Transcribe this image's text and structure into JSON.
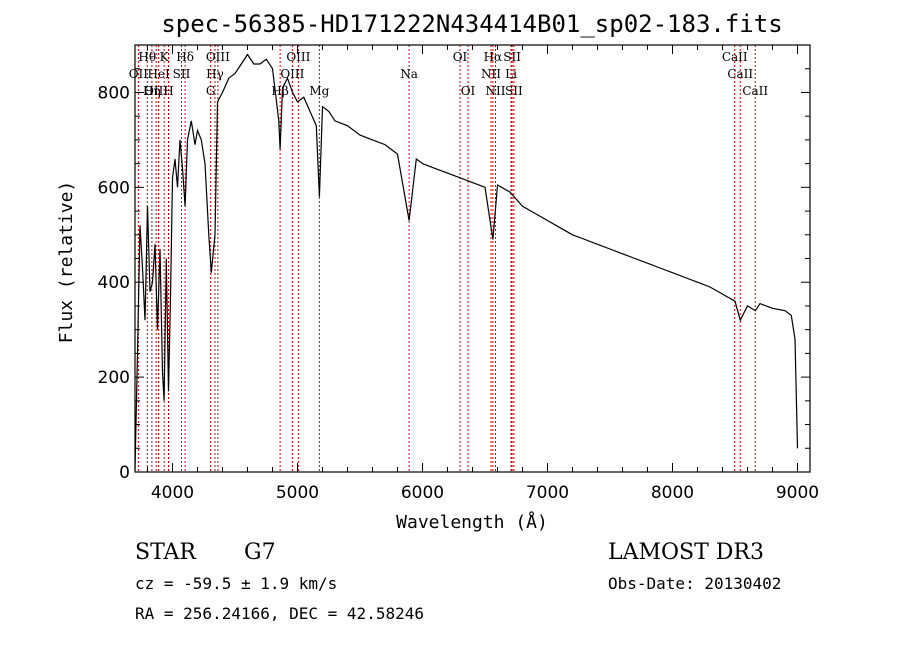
{
  "chart_data": {
    "type": "line",
    "title": "spec-56385-HD171222N434414B01_sp02-183.fits",
    "xlabel": "Wavelength (Å)",
    "ylabel": "Flux (relative)",
    "xlim": [
      3700,
      9100
    ],
    "ylim": [
      0,
      900
    ],
    "xticks": [
      4000,
      5000,
      6000,
      7000,
      8000,
      9000
    ],
    "yticks": [
      0,
      200,
      400,
      600,
      800
    ],
    "grid": false,
    "series": [
      {
        "x": [
          3700,
          3720,
          3740,
          3760,
          3780,
          3800,
          3820,
          3840,
          3860,
          3880,
          3900,
          3920,
          3933,
          3950,
          3968,
          3985,
          4000,
          4020,
          4040,
          4060,
          4080,
          4101,
          4120,
          4150,
          4180,
          4200,
          4230,
          4260,
          4290,
          4310,
          4325,
          4340,
          4360,
          4400,
          4450,
          4500,
          4550,
          4600,
          4650,
          4700,
          4750,
          4800,
          4850,
          4861,
          4880,
          4920,
          4960,
          5000,
          5050,
          5100,
          5150,
          5175,
          5200,
          5250,
          5300,
          5400,
          5500,
          5600,
          5700,
          5800,
          5893,
          5950,
          6000,
          6100,
          6200,
          6300,
          6400,
          6500,
          6563,
          6600,
          6700,
          6800,
          6900,
          7000,
          7100,
          7200,
          7300,
          7400,
          7500,
          7600,
          7700,
          7800,
          7900,
          8000,
          8100,
          8200,
          8300,
          8400,
          8500,
          8542,
          8600,
          8662,
          8700,
          8800,
          8900,
          8950,
          8980,
          9000
        ],
        "y": [
          5,
          250,
          520,
          430,
          320,
          560,
          380,
          400,
          480,
          300,
          470,
          210,
          150,
          450,
          170,
          380,
          620,
          660,
          600,
          700,
          640,
          560,
          700,
          740,
          690,
          720,
          700,
          650,
          500,
          420,
          460,
          500,
          780,
          800,
          830,
          840,
          860,
          880,
          860,
          860,
          870,
          850,
          740,
          680,
          810,
          830,
          800,
          780,
          790,
          760,
          730,
          580,
          770,
          760,
          740,
          730,
          710,
          700,
          690,
          670,
          530,
          660,
          650,
          640,
          630,
          620,
          610,
          600,
          490,
          605,
          590,
          560,
          545,
          530,
          515,
          500,
          490,
          480,
          470,
          460,
          450,
          440,
          430,
          420,
          410,
          400,
          390,
          375,
          360,
          320,
          350,
          340,
          355,
          345,
          340,
          330,
          280,
          50
        ]
      }
    ],
    "line_labels": [
      {
        "text": "Hθ",
        "x": 3798,
        "row": 1
      },
      {
        "text": "K",
        "x": 3933,
        "row": 1
      },
      {
        "text": "Hδ",
        "x": 4101,
        "row": 1
      },
      {
        "text": "OII",
        "x": 3727,
        "row": 2
      },
      {
        "text": "HeI",
        "x": 3889,
        "row": 2
      },
      {
        "text": "SII",
        "x": 4072,
        "row": 2
      },
      {
        "text": "OIII",
        "x": 3869,
        "row": 3
      },
      {
        "text": "Hη",
        "x": 3835,
        "row": 3
      },
      {
        "text": "H",
        "x": 3968,
        "row": 3
      },
      {
        "text": "OIII",
        "x": 4363,
        "row": 1
      },
      {
        "text": "Hγ",
        "x": 4340,
        "row": 2
      },
      {
        "text": "G",
        "x": 4305,
        "row": 3
      },
      {
        "text": "OIII",
        "x": 5007,
        "row": 1
      },
      {
        "text": "OIII",
        "x": 4959,
        "row": 2
      },
      {
        "text": "Hβ",
        "x": 4861,
        "row": 3
      },
      {
        "text": "Mg",
        "x": 5175,
        "row": 3
      },
      {
        "text": "Na",
        "x": 5893,
        "row": 2
      },
      {
        "text": "OI",
        "x": 6300,
        "row": 1
      },
      {
        "text": "OI",
        "x": 6364,
        "row": 3
      },
      {
        "text": "Hα",
        "x": 6563,
        "row": 1
      },
      {
        "text": "SII",
        "x": 6717,
        "row": 1
      },
      {
        "text": "NII",
        "x": 6548,
        "row": 2
      },
      {
        "text": "Li",
        "x": 6708,
        "row": 2
      },
      {
        "text": "NII",
        "x": 6584,
        "row": 3
      },
      {
        "text": "SII",
        "x": 6731,
        "row": 3
      },
      {
        "text": "CaII",
        "x": 8498,
        "row": 1
      },
      {
        "text": "CaII",
        "x": 8542,
        "row": 2
      },
      {
        "text": "CaII",
        "x": 8662,
        "row": 3
      }
    ]
  },
  "info": {
    "object_class": "STAR",
    "subclass": "G7",
    "redshift": "cz = -59.5 ± 1.9 km/s",
    "coords": "RA = 256.24166, DEC =  42.58246",
    "survey": "LAMOST DR3",
    "obs_date": "Obs-Date: 20130402"
  },
  "colors": {
    "spectrum": "#000000",
    "line_markers": "#cc0000",
    "background": "#ffffff"
  }
}
